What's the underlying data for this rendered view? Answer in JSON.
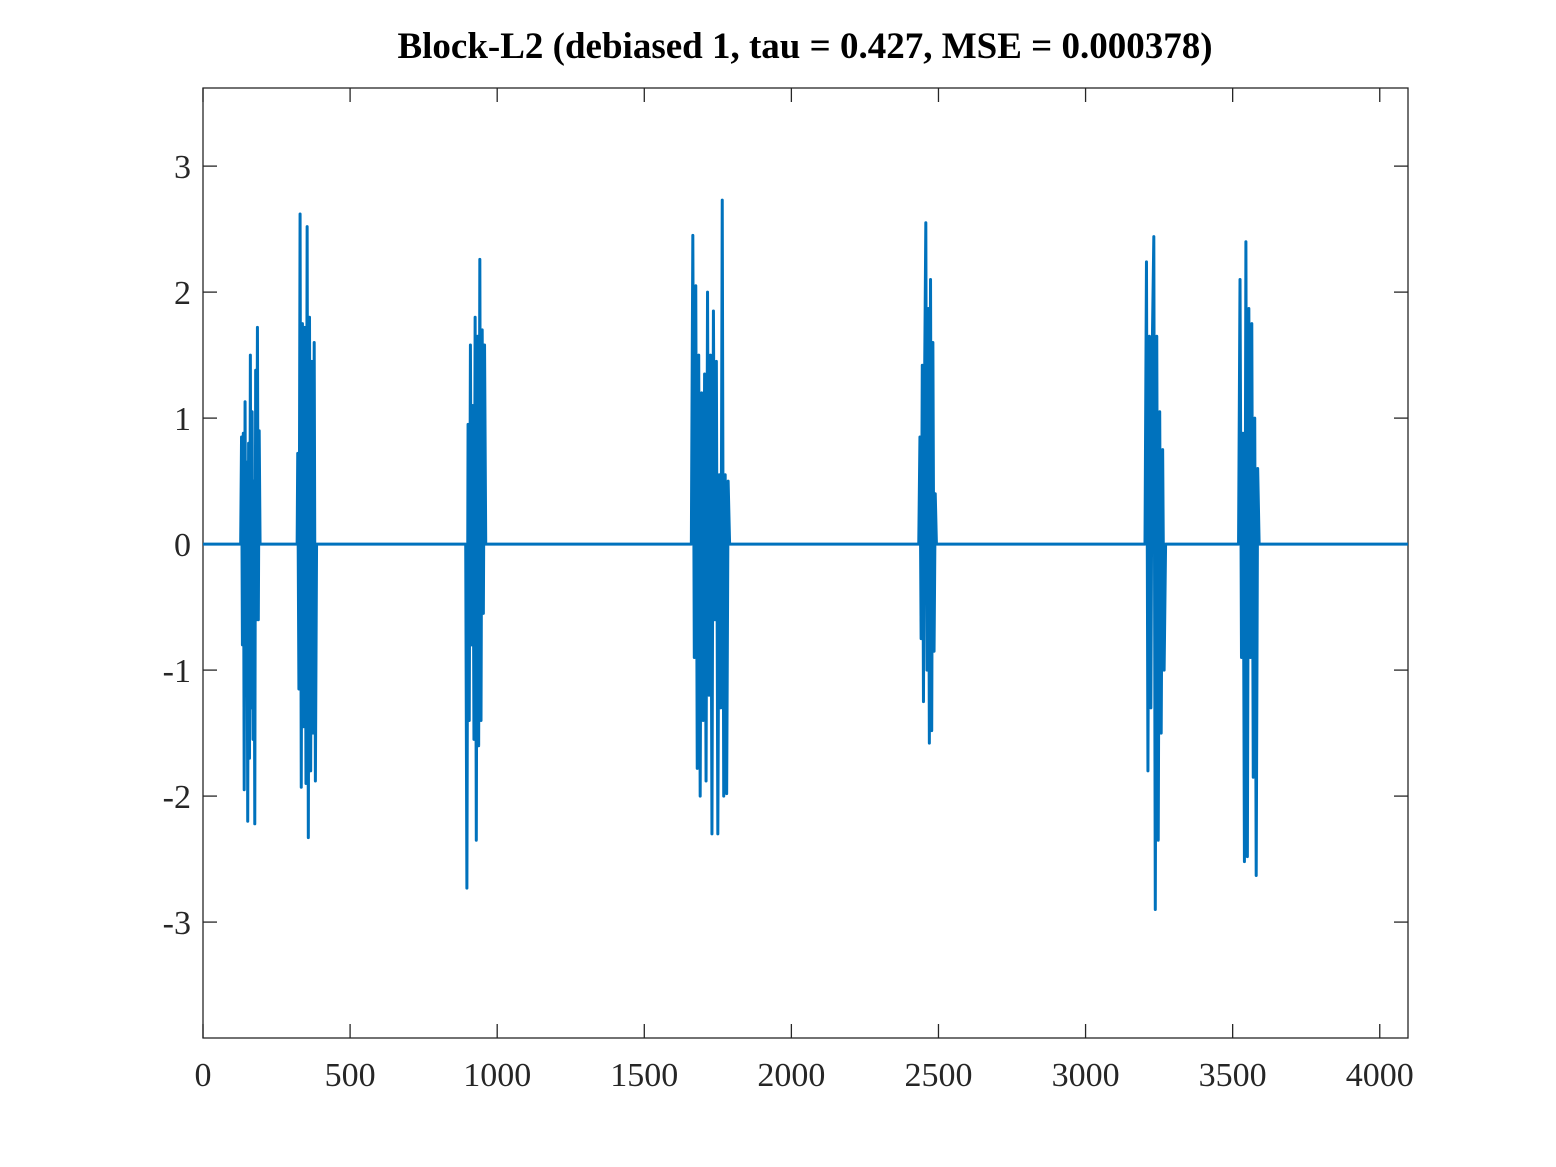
{
  "chart_data": {
    "type": "line",
    "title": "Block-L2 (debiased 1, tau = 0.427, MSE = 0.000378)",
    "color": "#0072bd",
    "x": [
      0,
      128,
      131,
      134,
      137,
      140,
      143,
      146,
      149,
      152,
      155,
      158,
      161,
      164,
      167,
      170,
      173,
      176,
      179,
      182,
      185,
      188,
      191,
      194,
      320,
      322,
      326,
      330,
      334,
      338,
      342,
      346,
      350,
      354,
      358,
      362,
      366,
      370,
      374,
      378,
      382,
      386,
      893,
      897,
      901,
      905,
      909,
      913,
      917,
      921,
      925,
      929,
      933,
      937,
      941,
      945,
      949,
      953,
      957,
      961,
      1660,
      1665,
      1670,
      1675,
      1680,
      1685,
      1690,
      1695,
      1700,
      1705,
      1710,
      1715,
      1720,
      1725,
      1730,
      1735,
      1740,
      1745,
      1750,
      1755,
      1760,
      1765,
      1770,
      1775,
      1780,
      1785,
      1790,
      2433,
      2437,
      2441,
      2445,
      2449,
      2453,
      2457,
      2461,
      2465,
      2469,
      2473,
      2477,
      2481,
      2485,
      2489,
      2493,
      3202,
      3207,
      3212,
      3217,
      3222,
      3227,
      3232,
      3237,
      3242,
      3247,
      3252,
      3257,
      3262,
      3267,
      3272,
      3520,
      3525,
      3530,
      3535,
      3540,
      3545,
      3550,
      3555,
      3560,
      3565,
      3570,
      3575,
      3580,
      3585,
      3590,
      4096
    ],
    "values": [
      0,
      0,
      0.85,
      -0.8,
      0.88,
      -1.95,
      1.13,
      -1.2,
      0.65,
      -2.2,
      0.8,
      -1.7,
      1.5,
      -1.3,
      1.05,
      -1.55,
      0.5,
      -2.22,
      1.38,
      -0.6,
      1.72,
      -0.6,
      0.9,
      0,
      0,
      0.72,
      -1.15,
      2.62,
      -1.93,
      1.75,
      -1.45,
      1.72,
      -1.9,
      2.52,
      -2.33,
      1.8,
      -1.8,
      1.45,
      -1.5,
      1.6,
      -1.88,
      0,
      0,
      -2.73,
      0.95,
      -1.4,
      1.58,
      -0.8,
      1.1,
      -1.55,
      1.8,
      -2.35,
      1.65,
      -1.6,
      2.26,
      -1.4,
      1.7,
      -0.55,
      1.58,
      0,
      0,
      2.45,
      -0.9,
      2.05,
      -1.78,
      1.5,
      -2.0,
      1.2,
      -1.4,
      1.35,
      -1.88,
      2.0,
      -1.2,
      1.5,
      -2.3,
      1.85,
      -0.6,
      1.45,
      -2.3,
      0.55,
      -1.3,
      2.73,
      -2.0,
      0.55,
      -1.98,
      0.5,
      0,
      0,
      0.85,
      -0.75,
      1.42,
      -1.25,
      1.35,
      2.55,
      -1.0,
      1.87,
      -1.58,
      2.1,
      -1.48,
      1.6,
      -0.85,
      0.4,
      0,
      0,
      2.24,
      -1.8,
      1.65,
      -1.3,
      1.6,
      2.44,
      -2.9,
      1.65,
      -2.35,
      1.05,
      -1.5,
      0.75,
      -1.0,
      0,
      0,
      2.1,
      -0.9,
      0.88,
      -2.52,
      2.4,
      -2.48,
      1.87,
      -0.9,
      1.75,
      -1.85,
      1.0,
      -2.63,
      0.6,
      0,
      0
    ],
    "xlim": [
      0,
      4096
    ],
    "ylim": [
      -3.92,
      3.62
    ],
    "xticks": [
      0,
      500,
      1000,
      1500,
      2000,
      2500,
      3000,
      3500,
      4000
    ],
    "yticks": [
      -3,
      -2,
      -1,
      0,
      1,
      2,
      3
    ]
  }
}
